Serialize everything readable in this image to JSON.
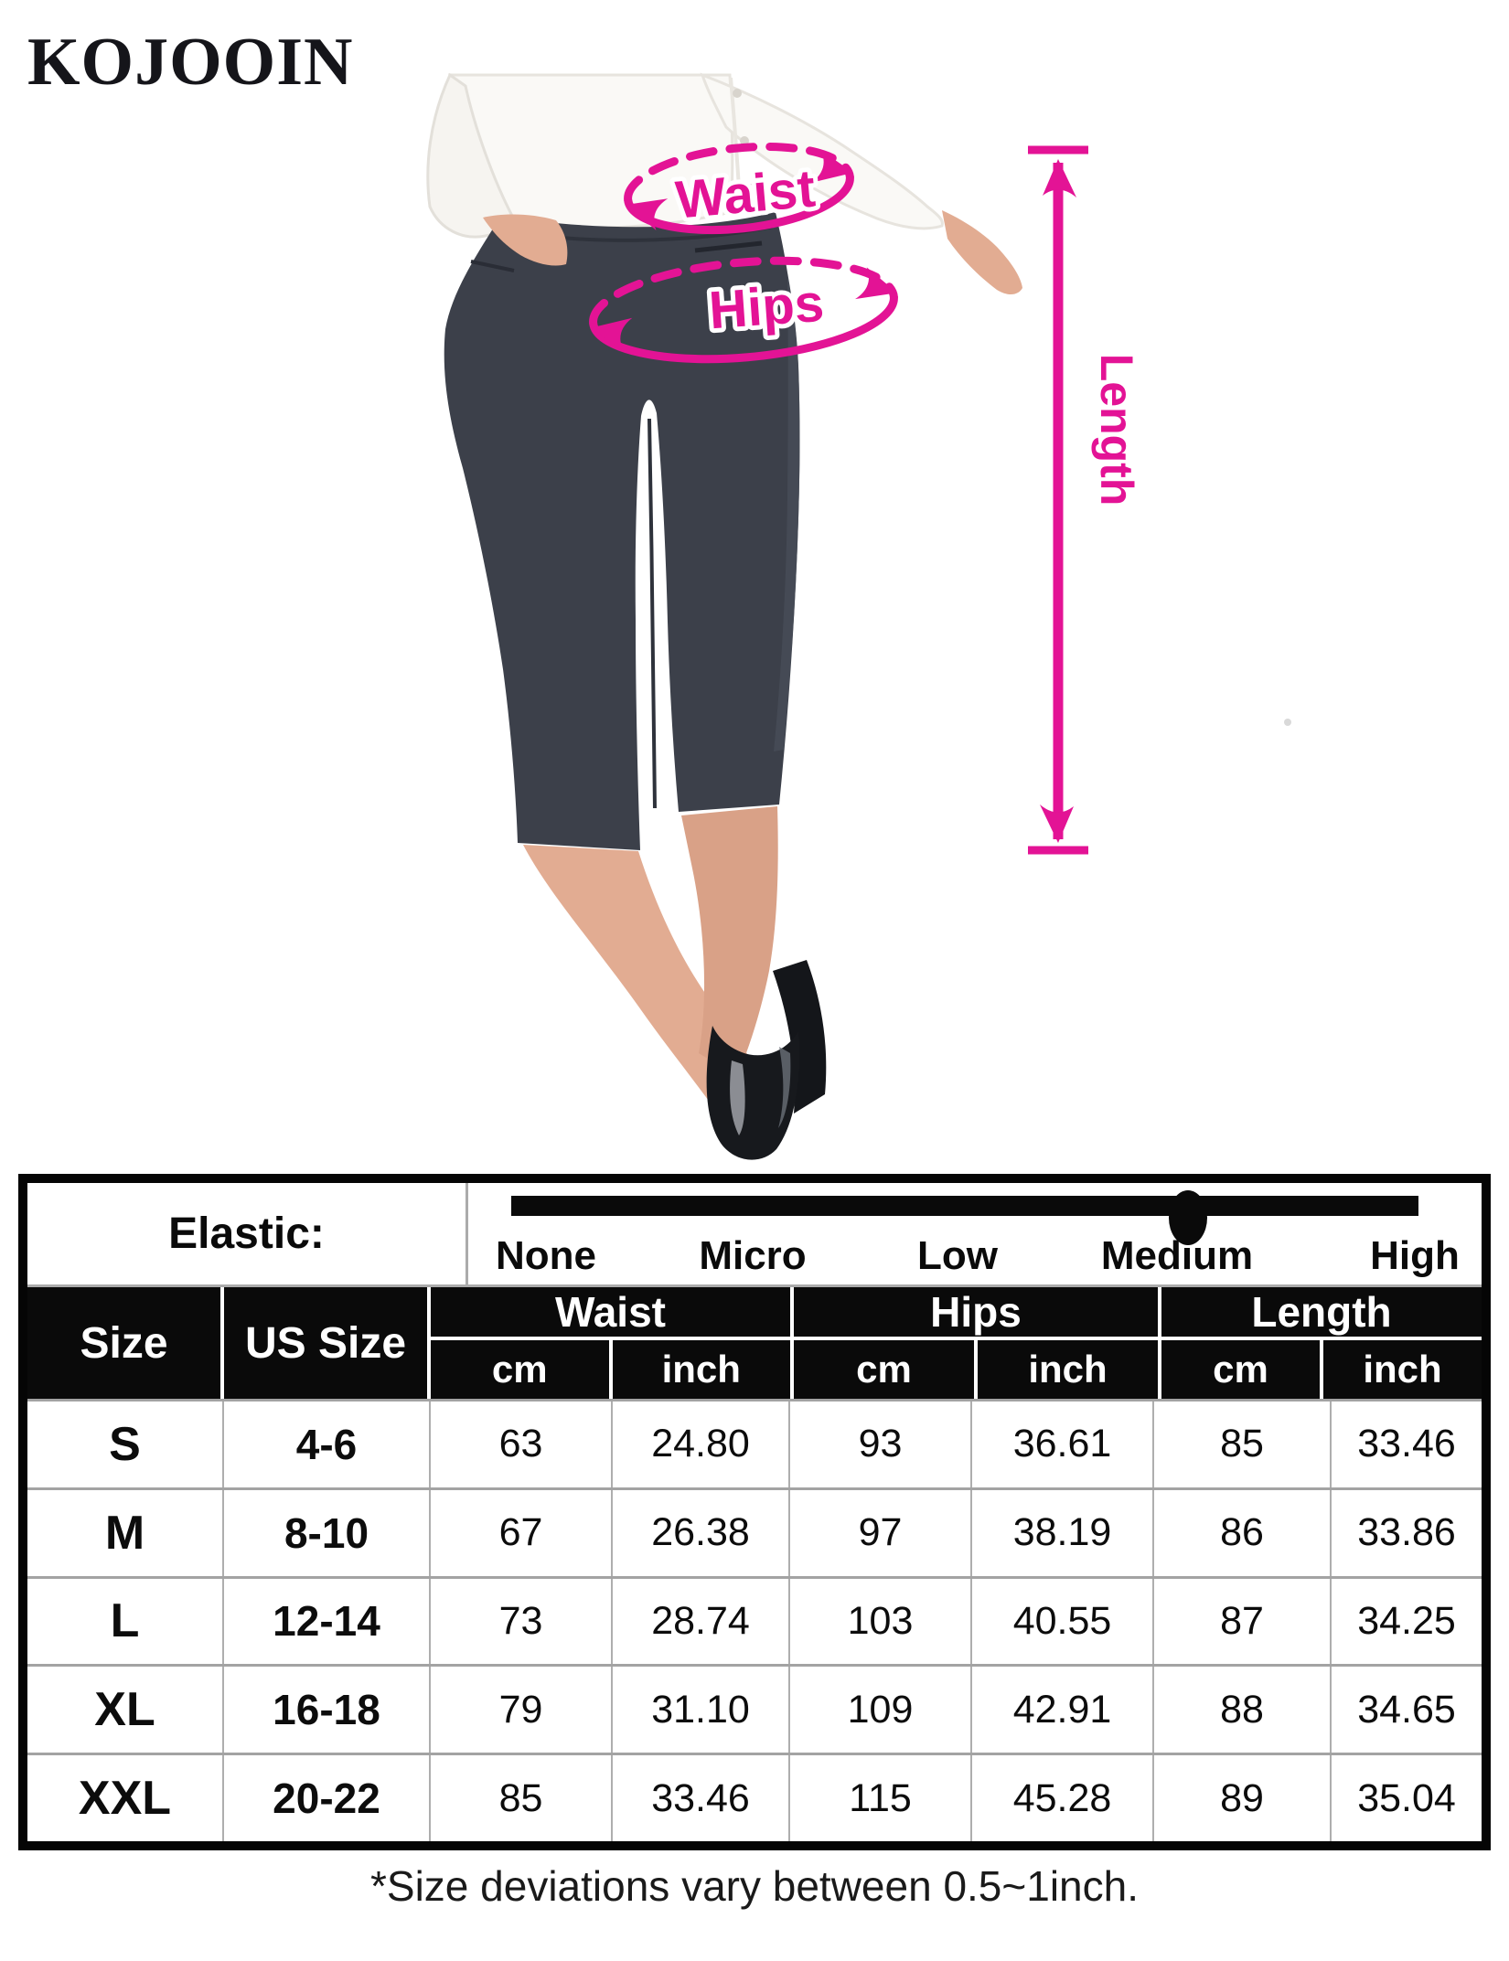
{
  "brand": "KOJOOIN",
  "figure": {
    "accent_color": "#E31395",
    "waist_label": "Waist",
    "hips_label": "Hips",
    "length_label": "Length"
  },
  "elastic_row": {
    "label": "Elastic:",
    "levels": [
      "None",
      "Micro",
      "Low",
      "Medium",
      "High"
    ],
    "selected_level": "Medium",
    "slider_position_pct": 74.6
  },
  "size_chart": {
    "size_header": "Size",
    "us_size_header": "US Size",
    "group_waist": "Waist",
    "group_hips": "Hips",
    "group_length": "Length",
    "unit_cm": "cm",
    "unit_inch": "inch",
    "rows": [
      {
        "size": "S",
        "us_size": "4-6",
        "waist_cm": "63",
        "waist_inch": "24.80",
        "hips_cm": "93",
        "hips_inch": "36.61",
        "length_cm": "85",
        "length_inch": "33.46"
      },
      {
        "size": "M",
        "us_size": "8-10",
        "waist_cm": "67",
        "waist_inch": "26.38",
        "hips_cm": "97",
        "hips_inch": "38.19",
        "length_cm": "86",
        "length_inch": "33.86"
      },
      {
        "size": "L",
        "us_size": "12-14",
        "waist_cm": "73",
        "waist_inch": "28.74",
        "hips_cm": "103",
        "hips_inch": "40.55",
        "length_cm": "87",
        "length_inch": "34.25"
      },
      {
        "size": "XL",
        "us_size": "16-18",
        "waist_cm": "79",
        "waist_inch": "31.10",
        "hips_cm": "109",
        "hips_inch": "42.91",
        "length_cm": "88",
        "length_inch": "34.65"
      },
      {
        "size": "XXL",
        "us_size": "20-22",
        "waist_cm": "85",
        "waist_inch": "33.46",
        "hips_cm": "115",
        "hips_inch": "45.28",
        "length_cm": "89",
        "length_inch": "35.04"
      }
    ]
  },
  "footnote": "*Size deviations vary between 0.5~1inch."
}
